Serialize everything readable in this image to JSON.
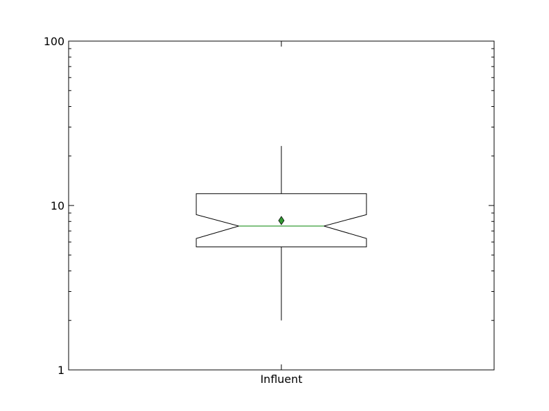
{
  "chart_data": {
    "type": "boxplot",
    "title": "",
    "xlabel": "",
    "ylabel": "",
    "categories": [
      "Influent"
    ],
    "y_scale": "log",
    "ylim": [
      1,
      100
    ],
    "y_major_ticks": [
      {
        "value": 1,
        "label": "1"
      },
      {
        "value": 10,
        "label": "10"
      },
      {
        "value": 100,
        "label": "100"
      }
    ],
    "grid": false,
    "notched": true,
    "boxes": [
      {
        "name": "Influent",
        "whisker_low": 2.0,
        "q1": 5.6,
        "notch_low": 6.3,
        "median": 7.5,
        "notch_high": 8.8,
        "mean": 8.1,
        "q3": 11.8,
        "whisker_high": 23.0
      }
    ],
    "colors": {
      "box": "#000000",
      "median": "#008000",
      "mean_marker": "#339933",
      "axes": "#000000"
    },
    "mean_marker_shape": "diamond"
  }
}
